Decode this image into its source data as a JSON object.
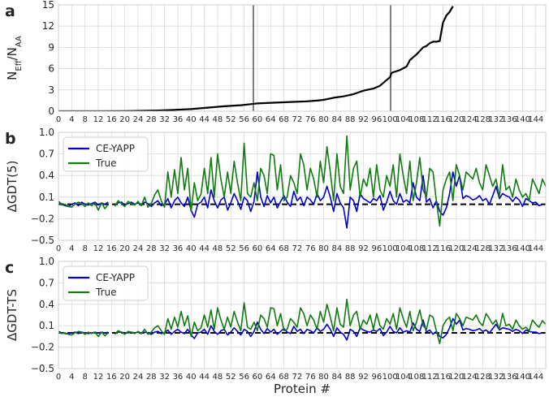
{
  "chart_data": [
    {
      "panel": "a",
      "type": "line",
      "xlabel": "",
      "ylabel_main": "N",
      "ylabel_sub1": "Eff",
      "ylabel_mid": "/N",
      "ylabel_sub2": "AA",
      "xlim": [
        0,
        147
      ],
      "ylim": [
        0,
        15
      ],
      "yticks": [
        "0",
        "3",
        "6",
        "9",
        "12",
        "15"
      ],
      "grid": true,
      "vlines": [
        58.8,
        100.2
      ],
      "series": [
        {
          "color": "#000000",
          "x": [
            0,
            10,
            20,
            30,
            35,
            40,
            45,
            50,
            55,
            58,
            60,
            65,
            70,
            75,
            78,
            80,
            83,
            86,
            89,
            92,
            95,
            97,
            98,
            99,
            100,
            100.5,
            101,
            103,
            105,
            106,
            107,
            108,
            109,
            110,
            111,
            112,
            113,
            114,
            115,
            116,
            117,
            118,
            119
          ],
          "y": [
            0,
            0,
            0.02,
            0.1,
            0.2,
            0.3,
            0.5,
            0.7,
            0.85,
            1.0,
            1.1,
            1.2,
            1.3,
            1.4,
            1.5,
            1.6,
            1.9,
            2.1,
            2.4,
            2.9,
            3.2,
            3.6,
            4.0,
            4.4,
            4.8,
            5.4,
            5.5,
            5.8,
            6.3,
            7.2,
            7.6,
            8.0,
            8.5,
            9.0,
            9.2,
            9.6,
            9.8,
            9.8,
            9.9,
            12.5,
            13.5,
            14.0,
            14.8
          ]
        }
      ]
    },
    {
      "panel": "b",
      "type": "line",
      "ylabel": "ΔGDT(5)",
      "xlim": [
        0,
        147
      ],
      "ylim": [
        -0.5,
        1.0
      ],
      "yticks": [
        "−0.5",
        "−0.2",
        "0.1",
        "0.4",
        "0.7",
        "1.0"
      ],
      "grid": true,
      "legend": "top-left",
      "gap_after_x": 15,
      "series": [
        {
          "name": "CE-YAPP",
          "color": "#0000cc",
          "y": [
            0.04,
            0.0,
            -0.02,
            -0.03,
            0.0,
            0.02,
            -0.02,
            0.03,
            0.0,
            -0.01,
            0.01,
            0.03,
            -0.01,
            0.02,
            0.0,
            0.03,
            null,
            0.0,
            0.02,
            0.03,
            -0.01,
            0.01,
            0.03,
            0.0,
            0.02,
            -0.01,
            0.03,
            0.01,
            -0.03,
            0.02,
            0.05,
            -0.02,
            0.0,
            0.08,
            -0.05,
            0.05,
            0.1,
            0.02,
            -0.03,
            0.1,
            -0.08,
            -0.18,
            0.0,
            0.03,
            0.1,
            -0.05,
            0.2,
            0.05,
            -0.05,
            0.06,
            0.1,
            -0.08,
            0.02,
            0.15,
            0.05,
            -0.07,
            0.1,
            0.05,
            -0.1,
            0.04,
            0.45,
            0.1,
            -0.03,
            0.12,
            0.02,
            0.1,
            -0.05,
            0.04,
            0.12,
            0.03,
            -0.03,
            0.18,
            0.05,
            0.1,
            -0.02,
            0.1,
            0.06,
            0.0,
            0.15,
            0.05,
            0.1,
            0.25,
            0.1,
            -0.1,
            0.15,
            0.02,
            -0.05,
            -0.33,
            0.1,
            0.05,
            -0.1,
            0.15,
            0.08,
            0.05,
            0.02,
            0.08,
            0.05,
            0.12,
            -0.08,
            0.03,
            0.18,
            0.05,
            0.0,
            0.15,
            0.03,
            0.06,
            0.02,
            0.3,
            0.1,
            0.05,
            0.4,
            0.03,
            0.08,
            -0.05,
            0.05,
            -0.1,
            -0.15,
            -0.05,
            0.15,
            0.45,
            0.25,
            0.4,
            0.08,
            0.12,
            0.1,
            0.06,
            0.08,
            0.12,
            0.05,
            0.08,
            0.0,
            0.12,
            0.25,
            0.08,
            0.15,
            0.12,
            0.1,
            0.04,
            0.1,
            0.06,
            -0.03,
            0.08,
            0.05,
            0.02,
            0.03,
            -0.02,
            0.0
          ],
          "note": "values indexed by protein # starting at 0"
        },
        {
          "name": "True",
          "color": "#117a11",
          "y": [
            0.03,
            -0.01,
            0.0,
            -0.03,
            -0.04,
            0.0,
            0.03,
            0.01,
            -0.03,
            0.02,
            -0.02,
            0.02,
            -0.08,
            0.02,
            -0.06,
            0.0,
            null,
            -0.03,
            0.05,
            0.01,
            -0.03,
            0.04,
            0.01,
            -0.01,
            0.04,
            -0.02,
            0.1,
            -0.04,
            0.01,
            0.13,
            0.2,
            0.05,
            -0.04,
            0.45,
            0.1,
            0.48,
            0.15,
            0.65,
            0.2,
            0.5,
            -0.1,
            0.3,
            0.05,
            0.14,
            0.5,
            0.15,
            0.65,
            0.1,
            0.7,
            0.35,
            0.1,
            0.45,
            0.15,
            0.6,
            0.3,
            0.05,
            0.85,
            0.15,
            0.1,
            0.3,
            0.05,
            0.5,
            0.4,
            0.15,
            0.7,
            0.68,
            0.2,
            0.55,
            0.05,
            0.1,
            0.4,
            0.3,
            0.15,
            0.7,
            0.55,
            0.2,
            0.5,
            0.35,
            0.1,
            0.6,
            0.3,
            0.8,
            0.45,
            0.05,
            0.7,
            0.25,
            0.15,
            0.95,
            0.2,
            0.5,
            0.6,
            0.1,
            0.35,
            0.25,
            0.5,
            0.1,
            0.55,
            0.2,
            0.1,
            0.4,
            0.25,
            0.55,
            0.1,
            0.7,
            0.4,
            0.15,
            0.6,
            0.05,
            0.3,
            0.65,
            0.2,
            0.1,
            0.5,
            0.45,
            0.05,
            -0.3,
            0.2,
            0.35,
            0.45,
            0.05,
            0.55,
            0.4,
            0.2,
            0.45,
            0.4,
            0.35,
            0.5,
            0.3,
            0.2,
            0.55,
            0.4,
            0.25,
            0.35,
            0.1,
            0.55,
            0.2,
            0.25,
            0.1,
            0.35,
            0.2,
            0.1,
            0.15,
            0.05,
            0.35,
            0.25,
            0.15,
            0.35,
            0.25,
            0.0
          ],
          "note": "values indexed by protein # starting at 0"
        }
      ],
      "hline": 0.0
    },
    {
      "panel": "c",
      "type": "line",
      "xlabel": "Protein #",
      "ylabel": "ΔGDT-TS",
      "xlim": [
        0,
        147
      ],
      "ylim": [
        -0.5,
        1.0
      ],
      "yticks": [
        "−0.5",
        "−0.2",
        "0.1",
        "0.4",
        "0.7",
        "1.0"
      ],
      "xticks": [
        "0",
        "4",
        "8",
        "12",
        "16",
        "20",
        "24",
        "28",
        "32",
        "36",
        "40",
        "44",
        "48",
        "52",
        "56",
        "60",
        "64",
        "68",
        "72",
        "76",
        "80",
        "84",
        "88",
        "92",
        "96",
        "100",
        "104",
        "108",
        "112",
        "116",
        "120",
        "124",
        "128",
        "132",
        "136",
        "140",
        "144"
      ],
      "grid": true,
      "legend": "top-left",
      "gap_after_x": 15,
      "series": [
        {
          "name": "CE-YAPP",
          "color": "#0000cc",
          "y": [
            0.02,
            0.0,
            -0.01,
            -0.01,
            0.0,
            0.01,
            -0.01,
            0.01,
            0.0,
            -0.01,
            0.0,
            0.01,
            0.0,
            0.01,
            0.0,
            0.01,
            null,
            0.0,
            0.01,
            0.01,
            0.0,
            0.0,
            0.01,
            0.0,
            0.01,
            -0.01,
            0.01,
            0.0,
            -0.02,
            0.01,
            0.02,
            -0.01,
            0.0,
            0.04,
            -0.02,
            0.02,
            0.05,
            0.01,
            -0.01,
            0.05,
            -0.03,
            -0.08,
            0.0,
            0.01,
            0.05,
            -0.02,
            0.1,
            0.02,
            -0.02,
            0.03,
            0.05,
            -0.03,
            0.01,
            0.07,
            0.02,
            -0.03,
            0.05,
            0.02,
            -0.05,
            0.02,
            0.15,
            0.05,
            -0.01,
            0.06,
            0.01,
            0.05,
            -0.02,
            0.02,
            0.06,
            0.01,
            -0.01,
            0.09,
            0.02,
            0.05,
            -0.01,
            0.05,
            0.03,
            0.0,
            0.07,
            0.02,
            0.05,
            0.12,
            0.05,
            -0.05,
            0.07,
            0.01,
            -0.02,
            -0.1,
            0.05,
            0.02,
            -0.05,
            0.07,
            0.04,
            0.02,
            0.01,
            0.04,
            0.02,
            0.06,
            -0.04,
            0.01,
            0.09,
            0.02,
            0.0,
            0.07,
            0.01,
            0.03,
            0.01,
            0.14,
            0.05,
            0.02,
            0.18,
            0.01,
            0.04,
            -0.02,
            0.02,
            -0.05,
            -0.07,
            -0.02,
            0.07,
            0.2,
            0.12,
            0.18,
            0.04,
            0.06,
            0.05,
            0.03,
            0.04,
            0.06,
            0.02,
            0.04,
            0.0,
            0.06,
            0.12,
            0.04,
            0.07,
            0.06,
            0.05,
            0.02,
            0.05,
            0.03,
            -0.01,
            0.04,
            0.02,
            0.01,
            0.01,
            -0.01,
            0.0
          ],
          "note": "values indexed by protein # starting at 0"
        },
        {
          "name": "True",
          "color": "#117a11",
          "y": [
            0.01,
            -0.01,
            0.0,
            -0.02,
            -0.03,
            0.0,
            0.02,
            0.01,
            -0.02,
            0.01,
            -0.01,
            0.01,
            -0.05,
            0.01,
            -0.04,
            0.0,
            null,
            -0.02,
            0.03,
            0.01,
            -0.02,
            0.02,
            0.01,
            -0.01,
            0.02,
            -0.01,
            0.05,
            -0.02,
            0.01,
            0.07,
            0.1,
            0.03,
            -0.02,
            0.2,
            0.05,
            0.22,
            0.08,
            0.3,
            0.1,
            0.24,
            -0.05,
            0.15,
            0.03,
            0.07,
            0.25,
            0.08,
            0.32,
            0.05,
            0.35,
            0.18,
            0.05,
            0.22,
            0.08,
            0.3,
            0.15,
            0.03,
            0.42,
            0.08,
            0.05,
            0.15,
            0.03,
            0.25,
            0.2,
            0.08,
            0.35,
            0.34,
            0.1,
            0.27,
            0.03,
            0.05,
            0.2,
            0.15,
            0.08,
            0.35,
            0.27,
            0.1,
            0.25,
            0.18,
            0.05,
            0.3,
            0.15,
            0.4,
            0.22,
            0.03,
            0.35,
            0.12,
            0.08,
            0.47,
            0.1,
            0.25,
            0.3,
            0.05,
            0.18,
            0.12,
            0.25,
            0.05,
            0.27,
            0.1,
            0.05,
            0.2,
            0.12,
            0.27,
            0.05,
            0.35,
            0.2,
            0.08,
            0.3,
            0.03,
            0.15,
            0.32,
            0.1,
            0.05,
            0.25,
            0.22,
            0.03,
            -0.15,
            0.1,
            0.18,
            0.22,
            0.03,
            0.27,
            0.2,
            0.1,
            0.22,
            0.2,
            0.18,
            0.25,
            0.15,
            0.1,
            0.27,
            0.2,
            0.12,
            0.18,
            0.05,
            0.27,
            0.1,
            0.12,
            0.05,
            0.18,
            0.1,
            0.05,
            0.08,
            0.03,
            0.18,
            0.12,
            0.08,
            0.17,
            0.12,
            0.0
          ],
          "note": "values indexed by protein # starting at 0"
        }
      ],
      "hline": 0.0
    }
  ]
}
